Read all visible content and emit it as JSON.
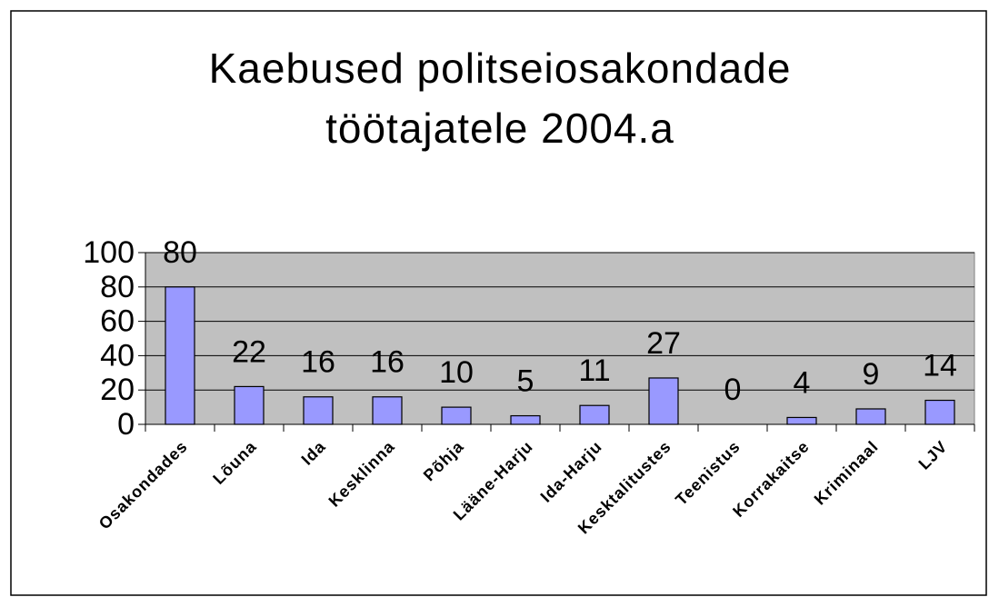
{
  "chart_data": {
    "type": "bar",
    "title": "Kaebused politseiosakondade töötajatele 2004.a",
    "categories": [
      "Osakondades",
      "Lõuna",
      "Ida",
      "Kesklinna",
      "Põhja",
      "Lääne-Harju",
      "Ida-Harju",
      "Kesktalitustes",
      "Teenistus",
      "Korrakaitse",
      "Kriminaal",
      "LJV"
    ],
    "values": [
      80,
      22,
      16,
      16,
      10,
      5,
      11,
      27,
      0,
      4,
      9,
      14
    ],
    "color": "#9999ff",
    "ylim": [
      0,
      100
    ],
    "yticks": [
      0,
      20,
      40,
      60,
      80,
      100
    ],
    "grid": true
  }
}
